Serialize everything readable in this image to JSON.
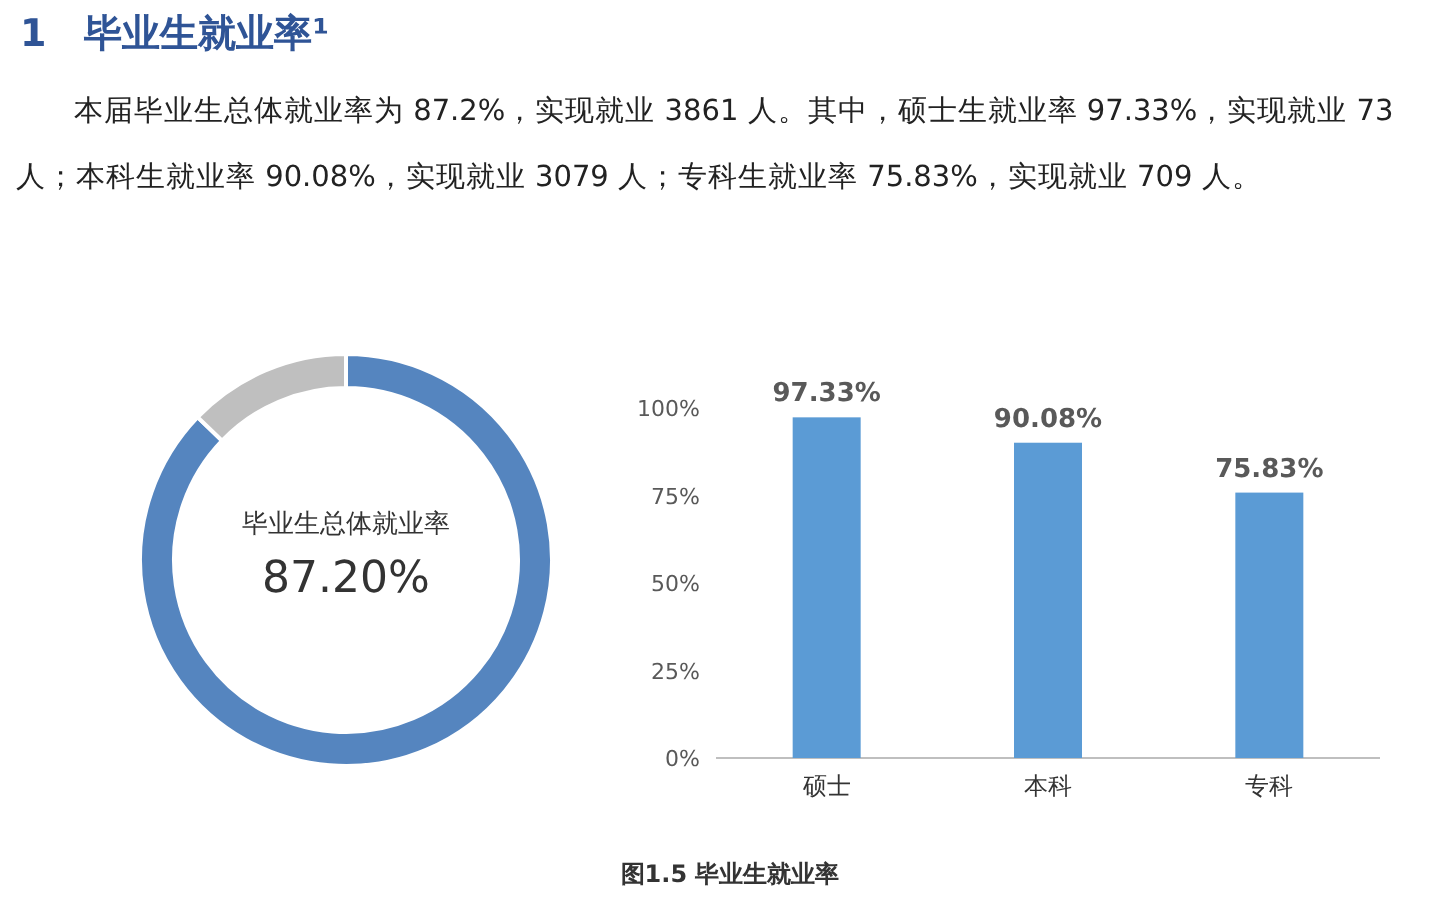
{
  "chart_data": [
    {
      "type": "donut",
      "title": "1　毕业生就业率¹",
      "subtitle": "本届毕业生总体就业率为 87.2%，实现就业 3861 人。其中，硕士生就业率 97.33%，实现就业 73 人；本科生就业率 90.08%，实现就业 3079 人；专科生就业率 75.83%，实现就业 709 人。",
      "categories": [
        null,
        null
      ],
      "values": [
        87.2,
        12.8
      ],
      "colors": [
        "#5585bf",
        "#bfbfbf"
      ],
      "annotations": [
        "毕业生总体就业率"
      ],
      "value_labels": [
        "87.20%",
        null
      ]
    },
    {
      "type": "bar",
      "categories": [
        "硕士",
        "本科",
        "专科"
      ],
      "values": [
        97.33,
        90.08,
        75.83
      ],
      "color": "#5b9bd5",
      "ylim": [
        0,
        100
      ],
      "yticks": [
        {
          "value": 0,
          "label": "0%"
        },
        {
          "value": 25,
          "label": "25%"
        },
        {
          "value": 50,
          "label": "50%"
        },
        {
          "value": 75,
          "label": "75%"
        },
        {
          "value": 100,
          "label": "100%"
        }
      ],
      "grid": false,
      "value_labels": [
        "97.33%",
        "90.08%",
        "75.83%"
      ],
      "annotations": [
        "图1.5 毕业生就业率"
      ]
    }
  ]
}
